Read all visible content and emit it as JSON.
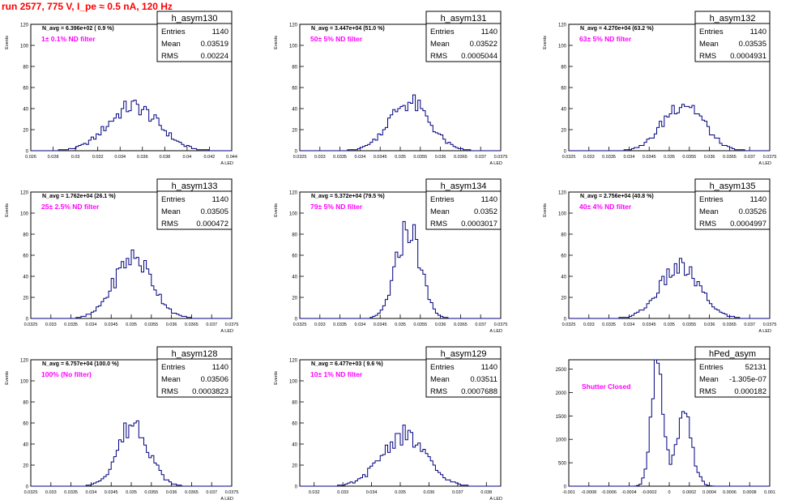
{
  "page_title": "run 2577,   775 V, I_pe ≈ 0.5 nA, 120 Hz",
  "colors": {
    "title": "#ff0000",
    "histogram": "#000080",
    "annotation": "#ff00ff",
    "frame": "#000000"
  },
  "chart_data": [
    {
      "type": "bar",
      "name": "h_asym130",
      "title": "N_avg = 6.396e+02 ( 0.9 %)",
      "annotation": "1± 0.1% ND filter",
      "xlabel": "A_LED",
      "ylabel": "Events",
      "xlim": [
        0.026,
        0.044
      ],
      "ylim": [
        0,
        120
      ],
      "xticks": [
        "0.026",
        "0.028",
        "0.03",
        "0.032",
        "0.034",
        "0.036",
        "0.038",
        "0.04",
        "0.042",
        "0.044"
      ],
      "yticks": [
        "0",
        "20",
        "40",
        "60",
        "80",
        "100",
        "120"
      ],
      "stats": [
        [
          "Entries",
          "1140"
        ],
        [
          "Mean",
          "0.03519"
        ],
        [
          "RMS",
          "0.00224"
        ]
      ],
      "mean": 0.03519,
      "sigma": 0.00224,
      "peak": 42
    },
    {
      "type": "bar",
      "name": "h_asym131",
      "title": "N_avg = 3.447e+04 (51.0 %)",
      "annotation": "50± 5% ND filter",
      "xlabel": "A_LED",
      "ylabel": "Events",
      "xlim": [
        0.0325,
        0.0375
      ],
      "ylim": [
        0,
        120
      ],
      "xticks": [
        "0.0325",
        "0.033",
        "0.0335",
        "0.034",
        "0.0345",
        "0.035",
        "0.0355",
        "0.036",
        "0.0365",
        "0.037",
        "0.0375"
      ],
      "yticks": [
        "0",
        "20",
        "40",
        "60",
        "80",
        "100",
        "120"
      ],
      "stats": [
        [
          "Entries",
          "1140"
        ],
        [
          "Mean",
          "0.03522"
        ],
        [
          "RMS",
          "0.0005044"
        ]
      ],
      "mean": 0.03522,
      "sigma": 0.0005044,
      "peak": 46
    },
    {
      "type": "bar",
      "name": "h_asym132",
      "title": "N_avg = 4.270e+04 (63.2 %)",
      "annotation": "63± 5% ND filter",
      "xlabel": "A_LED",
      "ylabel": "Events",
      "xlim": [
        0.0325,
        0.0375
      ],
      "ylim": [
        0,
        120
      ],
      "xticks": [
        "0.0325",
        "0.033",
        "0.0335",
        "0.034",
        "0.0345",
        "0.035",
        "0.0355",
        "0.036",
        "0.0365",
        "0.037",
        "0.0375"
      ],
      "yticks": [
        "0",
        "20",
        "40",
        "60",
        "80",
        "100",
        "120"
      ],
      "stats": [
        [
          "Entries",
          "1140"
        ],
        [
          "Mean",
          "0.03535"
        ],
        [
          "RMS",
          "0.0004931"
        ]
      ],
      "mean": 0.03535,
      "sigma": 0.0004931,
      "peak": 46
    },
    {
      "type": "bar",
      "name": "h_asym133",
      "title": "N_avg = 1.762e+04 (26.1 %)",
      "annotation": "25± 2.5% ND filter",
      "xlabel": "A_LED",
      "ylabel": "Events",
      "xlim": [
        0.0325,
        0.0375
      ],
      "ylim": [
        0,
        120
      ],
      "xticks": [
        "0.0325",
        "0.033",
        "0.0335",
        "0.034",
        "0.0345",
        "0.035",
        "0.0355",
        "0.036",
        "0.0365",
        "0.037",
        "0.0375"
      ],
      "yticks": [
        "0",
        "20",
        "40",
        "60",
        "80",
        "100",
        "120"
      ],
      "stats": [
        [
          "Entries",
          "1140"
        ],
        [
          "Mean",
          "0.03505"
        ],
        [
          "RMS",
          "0.000472"
        ]
      ],
      "mean": 0.03505,
      "sigma": 0.000472,
      "peak": 58
    },
    {
      "type": "bar",
      "name": "h_asym134",
      "title": "N_avg = 5.372e+04 (79.5 %)",
      "annotation": "79± 5% ND filter",
      "xlabel": "A_LED",
      "ylabel": "Events",
      "xlim": [
        0.0325,
        0.0375
      ],
      "ylim": [
        0,
        120
      ],
      "xticks": [
        "0.0325",
        "0.033",
        "0.0335",
        "0.034",
        "0.0345",
        "0.035",
        "0.0355",
        "0.036",
        "0.0365",
        "0.037",
        "0.0375"
      ],
      "yticks": [
        "0",
        "20",
        "40",
        "60",
        "80",
        "100",
        "120"
      ],
      "stats": [
        [
          "Entries",
          "1140"
        ],
        [
          "Mean",
          "0.0352"
        ],
        [
          "RMS",
          "0.0003017"
        ]
      ],
      "mean": 0.0352,
      "sigma": 0.0003017,
      "peak": 86
    },
    {
      "type": "bar",
      "name": "h_asym135",
      "title": "N_avg = 2.756e+04 (40.8 %)",
      "annotation": "40± 4% ND filter",
      "xlabel": "A_LED",
      "ylabel": "Events",
      "xlim": [
        0.0325,
        0.0375
      ],
      "ylim": [
        0,
        120
      ],
      "xticks": [
        "0.0325",
        "0.033",
        "0.0335",
        "0.034",
        "0.0345",
        "0.035",
        "0.0355",
        "0.036",
        "0.0365",
        "0.037",
        "0.0375"
      ],
      "yticks": [
        "0",
        "20",
        "40",
        "60",
        "80",
        "100",
        "120"
      ],
      "stats": [
        [
          "Entries",
          "1140"
        ],
        [
          "Mean",
          "0.03526"
        ],
        [
          "RMS",
          "0.0004997"
        ]
      ],
      "mean": 0.03526,
      "sigma": 0.0004997,
      "peak": 48
    },
    {
      "type": "bar",
      "name": "h_asym128",
      "title": "N_avg = 6.757e+04 (100.0 %)",
      "annotation": "100% (No filter)",
      "xlabel": "A_LED",
      "ylabel": "Events",
      "xlim": [
        0.0325,
        0.0375
      ],
      "ylim": [
        0,
        120
      ],
      "xticks": [
        "0.0325",
        "0.033",
        "0.0335",
        "0.034",
        "0.0345",
        "0.035",
        "0.0355",
        "0.036",
        "0.0365",
        "0.037",
        "0.0375"
      ],
      "yticks": [
        "0",
        "20",
        "40",
        "60",
        "80",
        "100",
        "120"
      ],
      "stats": [
        [
          "Entries",
          "1140"
        ],
        [
          "Mean",
          "0.03506"
        ],
        [
          "RMS",
          "0.0003823"
        ]
      ],
      "mean": 0.03506,
      "sigma": 0.0003823,
      "peak": 60
    },
    {
      "type": "bar",
      "name": "h_asym129",
      "title": "N_avg = 6.477e+03 ( 9.6 %)",
      "annotation": "10± 1% ND filter",
      "xlabel": "A_LED",
      "ylabel": "Events",
      "xlim": [
        0.0315,
        0.0385
      ],
      "ylim": [
        0,
        120
      ],
      "xticks": [
        "",
        "0.032",
        "0.033",
        "0.034",
        "0.035",
        "0.036",
        "0.037",
        "0.038"
      ],
      "xtickvals": [
        0.0315,
        0.032,
        0.033,
        0.034,
        0.035,
        0.036,
        0.037,
        0.038
      ],
      "yticks": [
        "0",
        "20",
        "40",
        "60",
        "80",
        "100",
        "120"
      ],
      "stats": [
        [
          "Entries",
          "1140"
        ],
        [
          "Mean",
          "0.03511"
        ],
        [
          "RMS",
          "0.0007688"
        ]
      ],
      "mean": 0.03511,
      "sigma": 0.0007688,
      "peak": 48
    },
    {
      "type": "bar",
      "name": "hPed_asym",
      "title": "",
      "annotation": "Shutter Closed",
      "xlabel": "",
      "ylabel": "",
      "xlim": [
        -0.001,
        0.001
      ],
      "ylim": [
        0,
        2700
      ],
      "xticks": [
        "-0.001",
        "-0.0008",
        "-0.0006",
        "-0.0004",
        "-0.0002",
        "0",
        "0.0002",
        "0.0004",
        "0.0006",
        "0.0008",
        "0.001"
      ],
      "yticks": [
        "0",
        "500",
        "1000",
        "1500",
        "2000",
        "2500"
      ],
      "stats": [
        [
          "Entries",
          "52131"
        ],
        [
          "Mean",
          "-1.305e-07"
        ],
        [
          "RMS",
          "0.000182"
        ]
      ],
      "mean": -0.00012,
      "sigma": 6e-05,
      "peak": 2520,
      "mean2": 0.00015,
      "sigma2": 8e-05,
      "peak2": 1400
    }
  ]
}
